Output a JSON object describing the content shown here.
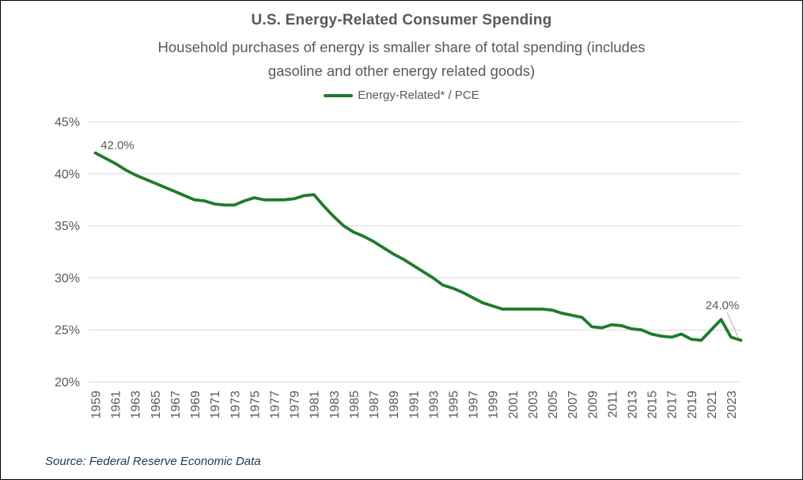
{
  "header": {
    "title": "U.S. Energy-Related Consumer Spending",
    "subtitle": "Household purchases of energy is smaller share of total spending (includes\ngasoline and other energy related goods)"
  },
  "legend": {
    "label": "Energy-Related* / PCE"
  },
  "source": "Source: Federal Reserve Economic Data",
  "colors": {
    "line": "#1F7B2D",
    "grid": "#D9D9D9",
    "axis_text": "#595959",
    "title_text": "#595959",
    "data_label_text": "#595959",
    "leader_line": "#BFBFBF",
    "source_text": "#1F3864",
    "border": "#000000"
  },
  "chart_data": {
    "type": "line",
    "title": "U.S. Energy-Related Consumer Spending",
    "subtitle": "Household purchases of energy is smaller share of total spending (includes gasoline and other energy related goods)",
    "xlabel": "",
    "ylabel": "",
    "grid": "horizontal-only",
    "legend_position": "top-center",
    "legend_entries": [
      "Energy-Related* / PCE"
    ],
    "ylim": [
      20,
      45
    ],
    "yticks": [
      45,
      40,
      35,
      30,
      25,
      20
    ],
    "ytick_format": "percent",
    "xticks": [
      1959,
      1961,
      1963,
      1965,
      1967,
      1969,
      1971,
      1973,
      1975,
      1977,
      1979,
      1981,
      1983,
      1985,
      1987,
      1989,
      1991,
      1993,
      1995,
      1997,
      1999,
      2001,
      2003,
      2005,
      2007,
      2009,
      2011,
      2013,
      2015,
      2017,
      2019,
      2021,
      2023
    ],
    "x": [
      1959,
      1960,
      1961,
      1962,
      1963,
      1964,
      1965,
      1966,
      1967,
      1968,
      1969,
      1970,
      1971,
      1972,
      1973,
      1974,
      1975,
      1976,
      1977,
      1978,
      1979,
      1980,
      1981,
      1982,
      1983,
      1984,
      1985,
      1986,
      1987,
      1988,
      1989,
      1990,
      1991,
      1992,
      1993,
      1994,
      1995,
      1996,
      1997,
      1998,
      1999,
      2000,
      2001,
      2002,
      2003,
      2004,
      2005,
      2006,
      2007,
      2008,
      2009,
      2010,
      2011,
      2012,
      2013,
      2014,
      2015,
      2016,
      2017,
      2018,
      2019,
      2020,
      2021,
      2022,
      2023,
      2024
    ],
    "series": [
      {
        "name": "Energy-Related* / PCE",
        "color": "#1F7B2D",
        "values": [
          42.0,
          41.5,
          41.0,
          40.4,
          39.9,
          39.5,
          39.1,
          38.7,
          38.3,
          37.9,
          37.5,
          37.4,
          37.1,
          37.0,
          37.0,
          37.4,
          37.7,
          37.5,
          37.5,
          37.5,
          37.6,
          37.9,
          38.0,
          36.9,
          35.9,
          35.0,
          34.4,
          34.0,
          33.5,
          32.9,
          32.3,
          31.8,
          31.2,
          30.6,
          30.0,
          29.3,
          29.0,
          28.6,
          28.1,
          27.6,
          27.3,
          27.0,
          27.0,
          27.0,
          27.0,
          27.0,
          26.9,
          26.6,
          26.4,
          26.2,
          25.3,
          25.2,
          25.5,
          25.4,
          25.1,
          25.0,
          24.6,
          24.4,
          24.3,
          24.6,
          24.1,
          24.0,
          25.0,
          26.0,
          24.3,
          24.0
        ]
      }
    ],
    "point_labels": [
      {
        "year": 1959,
        "value": 42.0,
        "label": "42.0%",
        "position": "above-right",
        "leader": false
      },
      {
        "year": 2024,
        "value": 24.0,
        "label": "24.0%",
        "position": "above-left",
        "leader": true
      }
    ],
    "source": "Source: Federal Reserve Economic Data"
  }
}
